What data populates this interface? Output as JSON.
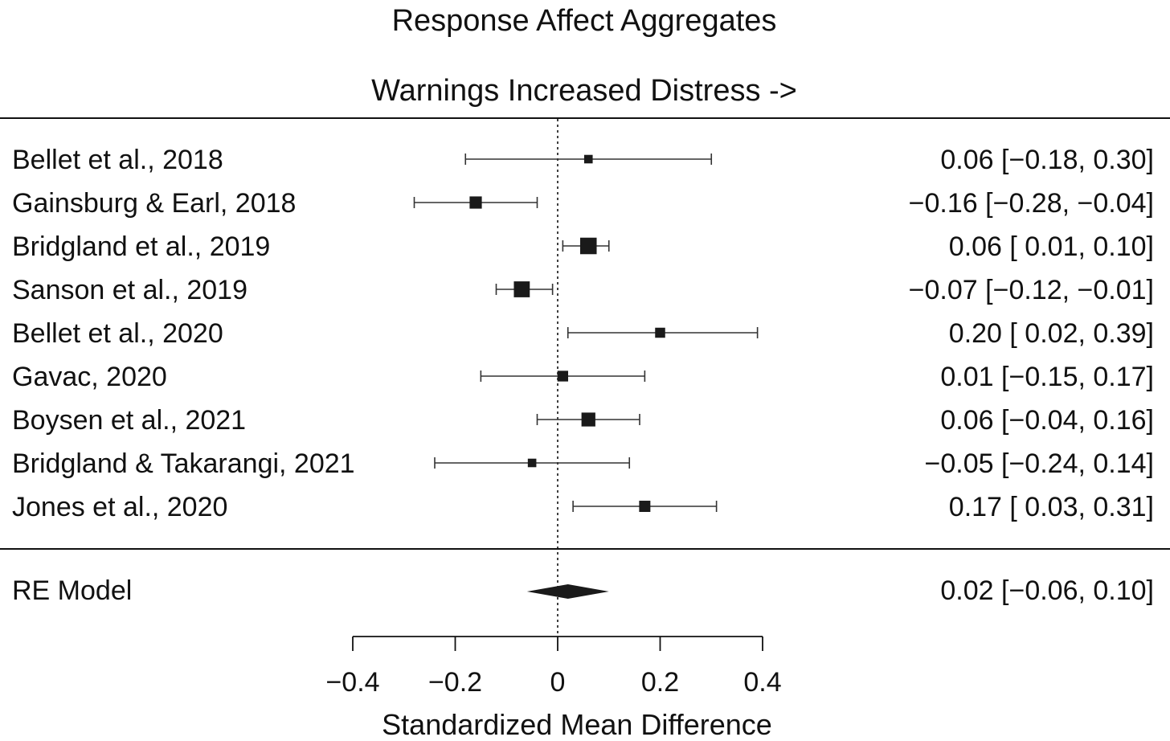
{
  "chart_data": {
    "type": "forest",
    "title": "Response Affect Aggregates",
    "subtitle": "Warnings Increased Distress ->",
    "xlabel": "Standardized Mean Difference",
    "xlim": [
      -0.4,
      0.4
    ],
    "ticks": [
      {
        "value": -0.4,
        "label": "−0.4"
      },
      {
        "value": -0.2,
        "label": "−0.2"
      },
      {
        "value": 0,
        "label": "0"
      },
      {
        "value": 0.2,
        "label": "0.2"
      },
      {
        "value": 0.4,
        "label": "0.4"
      }
    ],
    "reference_line": 0,
    "studies": [
      {
        "label": "Bellet et al., 2018",
        "estimate": 0.06,
        "lower": -0.18,
        "upper": 0.3,
        "weight": 1,
        "ci_text": "0.06 [−0.18, 0.30]"
      },
      {
        "label": "Gainsburg & Earl, 2018",
        "estimate": -0.16,
        "lower": -0.28,
        "upper": -0.04,
        "weight": 4,
        "ci_text": "−0.16 [−0.28, −0.04]"
      },
      {
        "label": "Bridgland et al., 2019",
        "estimate": 0.06,
        "lower": 0.01,
        "upper": 0.1,
        "weight": 10,
        "ci_text": "0.06 [ 0.01, 0.10]"
      },
      {
        "label": "Sanson et al., 2019",
        "estimate": -0.07,
        "lower": -0.12,
        "upper": -0.01,
        "weight": 9,
        "ci_text": "−0.07 [−0.12, −0.01]"
      },
      {
        "label": "Bellet et al., 2020",
        "estimate": 0.2,
        "lower": 0.02,
        "upper": 0.39,
        "weight": 2,
        "ci_text": "0.20 [ 0.02, 0.39]"
      },
      {
        "label": "Gavac, 2020",
        "estimate": 0.01,
        "lower": -0.15,
        "upper": 0.17,
        "weight": 2.5,
        "ci_text": "0.01 [−0.15, 0.17]"
      },
      {
        "label": "Boysen et al., 2021",
        "estimate": 0.06,
        "lower": -0.04,
        "upper": 0.16,
        "weight": 6,
        "ci_text": "0.06 [−0.04, 0.16]"
      },
      {
        "label": "Bridgland & Takarangi, 2021",
        "estimate": -0.05,
        "lower": -0.24,
        "upper": 0.14,
        "weight": 1,
        "ci_text": "−0.05 [−0.24, 0.14]"
      },
      {
        "label": "Jones et al., 2020",
        "estimate": 0.17,
        "lower": 0.03,
        "upper": 0.31,
        "weight": 3,
        "ci_text": "0.17 [ 0.03, 0.31]"
      }
    ],
    "summary": {
      "label": "RE Model",
      "estimate": 0.02,
      "lower": -0.06,
      "upper": 0.1,
      "ci_text": "0.02 [−0.06, 0.10]"
    },
    "grid": false,
    "legend": "none"
  }
}
